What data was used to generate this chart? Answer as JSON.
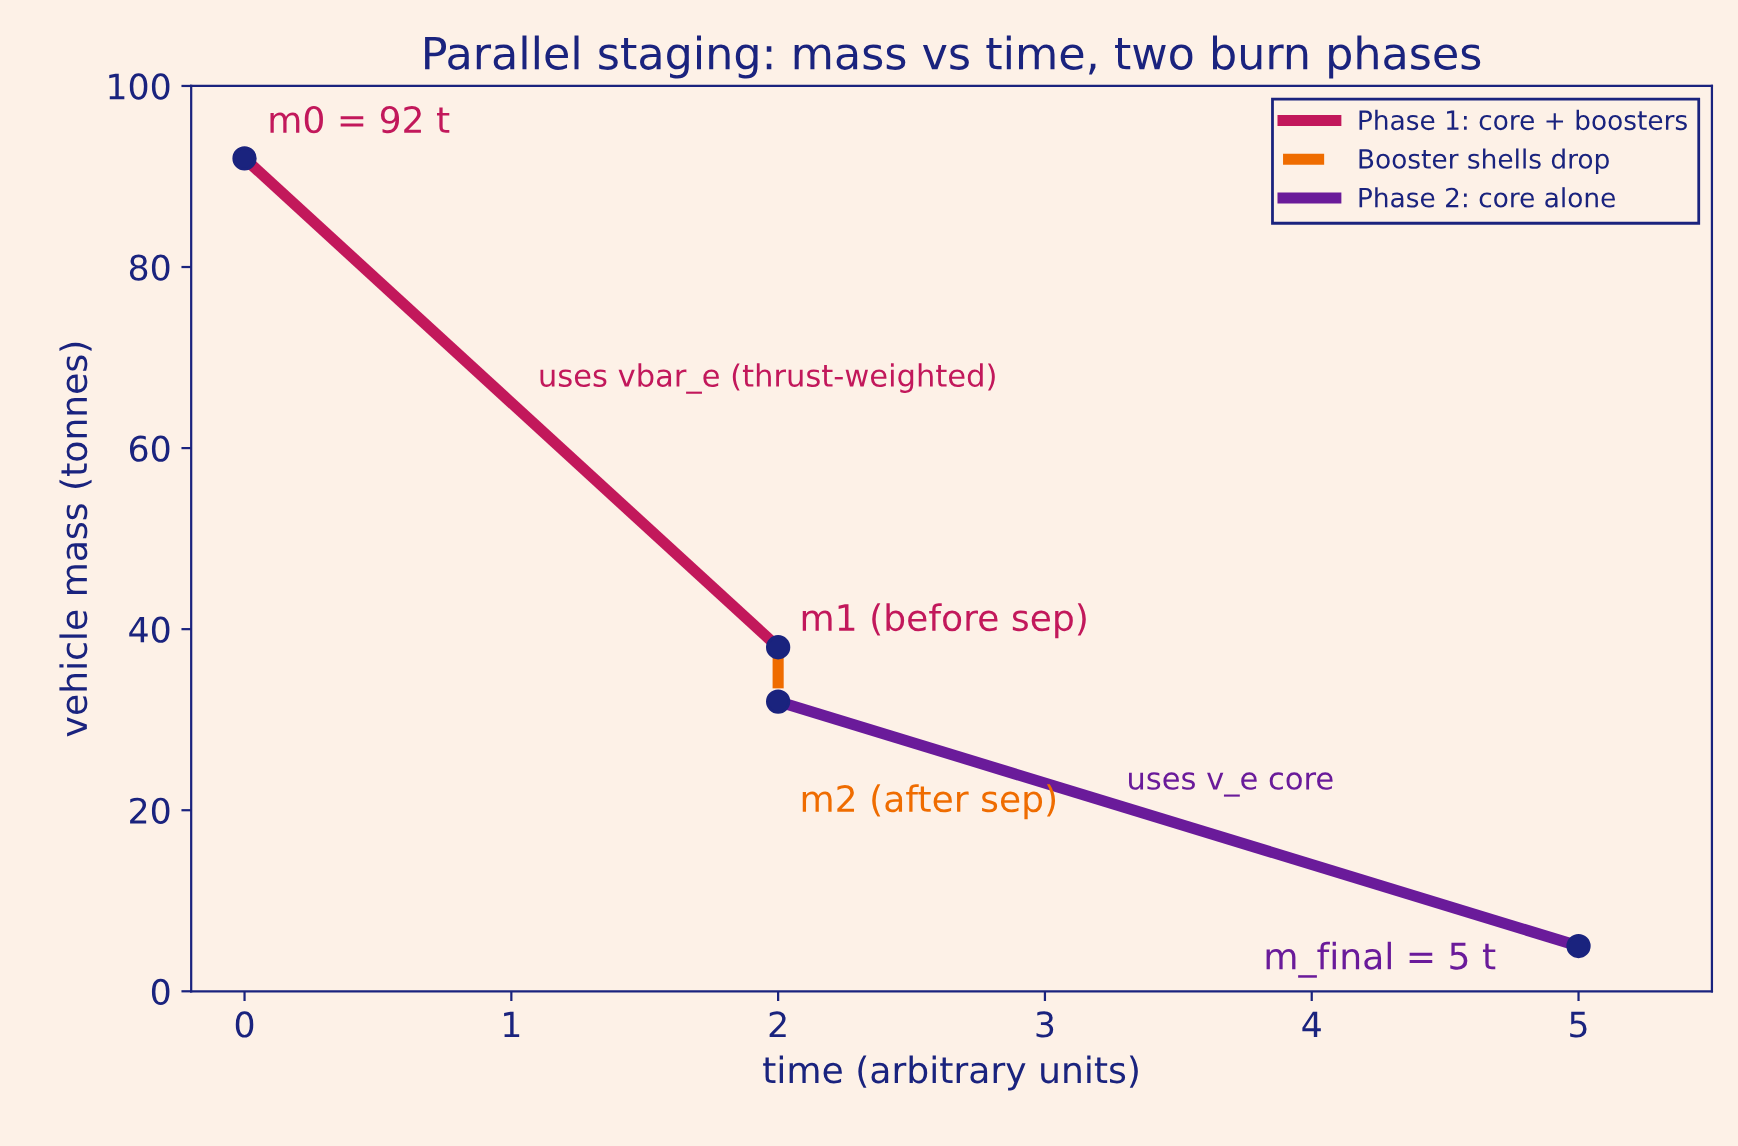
{
  "chart_data": {
    "type": "line",
    "title": "Parallel staging: mass vs time, two burn phases",
    "xlabel": "time (arbitrary units)",
    "ylabel": "vehicle mass (tonnes)",
    "xlim": [
      -0.2,
      5.5
    ],
    "xticks": [
      0,
      1,
      2,
      3,
      4,
      5
    ],
    "ylim": [
      0,
      100
    ],
    "yticks": [
      0,
      20,
      40,
      60,
      80,
      100
    ],
    "grid": false,
    "legend": "top right",
    "series": [
      {
        "name": "Phase 1: core + boosters",
        "color": "#c2185b",
        "x": [
          0,
          2
        ],
        "values": [
          92,
          38
        ],
        "line_style": "solid"
      },
      {
        "name": "Booster shells drop",
        "color": "#ef6c00",
        "x": [
          2,
          2
        ],
        "values": [
          38,
          32
        ],
        "line_style": "dashed"
      },
      {
        "name": "Phase 2: core alone",
        "color": "#6a1b9a",
        "x": [
          2,
          5
        ],
        "values": [
          32,
          5
        ],
        "line_style": "solid"
      },
      {
        "type": "scatter",
        "color": "#1a237e",
        "x": [
          0,
          2,
          2,
          5
        ],
        "values": [
          92,
          38,
          32,
          5
        ],
        "marker": "circle"
      }
    ],
    "annotations": [
      "m0 = 92 t",
      "m1 (before sep)",
      "m2 (after sep)",
      "m_final = 5 t",
      "uses vbar_e (thrust-weighted)",
      "uses v_e core"
    ]
  }
}
